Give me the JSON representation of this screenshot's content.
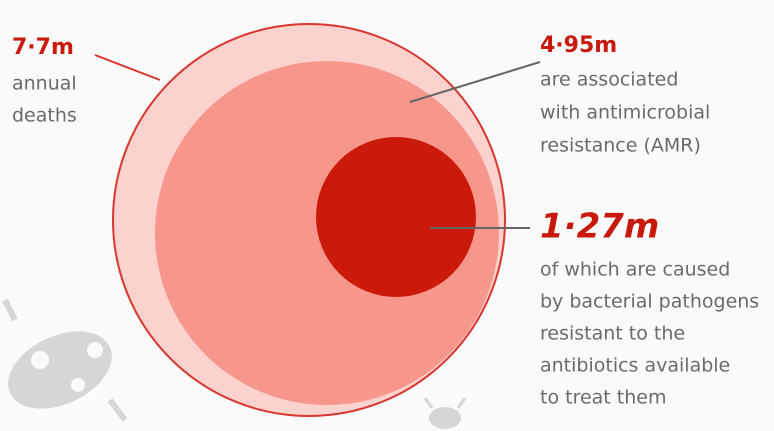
{
  "labels": [
    {
      "value": "7·7m",
      "lines": [
        "annual",
        "deaths"
      ]
    },
    {
      "value": "4·95m",
      "lines": [
        "are associated",
        "with antimicrobial",
        "resistance (AMR)"
      ]
    },
    {
      "value": "1·27m",
      "lines": [
        "of which are caused",
        "by bacterial pathogens",
        "resistant to the",
        "antibiotics available",
        "to treat them"
      ]
    }
  ]
}
